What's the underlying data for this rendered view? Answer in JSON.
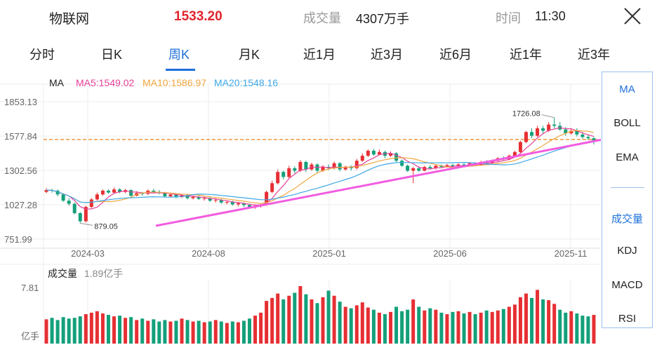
{
  "header": {
    "name": "物联网",
    "price": "1533.20",
    "volume_label": "成交量",
    "volume_value": "4307万手",
    "time_label": "时间",
    "time_value": "11:30"
  },
  "tabs": [
    "分时",
    "日K",
    "周K",
    "月K",
    "近1月",
    "近3月",
    "近6月",
    "近1年",
    "近3年"
  ],
  "active_tab": "周K",
  "ma_legend": {
    "title": "MA",
    "ma5": "MA5:1549.02",
    "ma10": "MA10:1586.97",
    "ma20": "MA20:1548.16"
  },
  "volume_legend": {
    "title": "成交量",
    "value": "1.89亿手"
  },
  "side_panel": {
    "items": [
      "MA",
      "BOLL",
      "EMA",
      "成交量",
      "KDJ",
      "MACD",
      "RSI"
    ],
    "active": [
      "MA",
      "成交量"
    ]
  },
  "colors": {
    "up": "#e62f33",
    "down": "#13a07a",
    "ma5": "#e6419a",
    "ma10": "#f0a640",
    "ma20": "#3fa7e6",
    "trendline": "#f25ce0",
    "dashed": "#f08c2a",
    "accent": "#1e6fd9"
  },
  "chart_data": {
    "type": "candlestick",
    "y_ticks": [
      "1853.13",
      "1577.84",
      "1302.56",
      "1027.28",
      "751.99"
    ],
    "ylim": [
      751.99,
      1853.13
    ],
    "x_ticks": [
      "2024-03",
      "2024-08",
      "2025-01",
      "2025-06",
      "2025-11"
    ],
    "high_label": "1726.08",
    "low_label": "879.05",
    "reference_line": 1550,
    "volume_axis": {
      "top_label": "7.81",
      "unit_label": "亿手",
      "max": 7.81
    },
    "candles": [
      [
        1130,
        1145,
        1160,
        1120
      ],
      [
        1145,
        1140,
        1155,
        1125
      ],
      [
        1140,
        1110,
        1150,
        1095
      ],
      [
        1110,
        1060,
        1120,
        1050
      ],
      [
        1060,
        1035,
        1080,
        1020
      ],
      [
        1035,
        960,
        1045,
        950
      ],
      [
        960,
        895,
        970,
        879
      ],
      [
        895,
        1010,
        1020,
        885
      ],
      [
        1010,
        1070,
        1080,
        1000
      ],
      [
        1070,
        1110,
        1125,
        1060
      ],
      [
        1110,
        1140,
        1150,
        1100
      ],
      [
        1140,
        1125,
        1150,
        1115
      ],
      [
        1125,
        1150,
        1165,
        1115
      ],
      [
        1150,
        1130,
        1160,
        1120
      ],
      [
        1130,
        1145,
        1155,
        1120
      ],
      [
        1145,
        1100,
        1150,
        1090
      ],
      [
        1100,
        1120,
        1135,
        1095
      ],
      [
        1120,
        1115,
        1130,
        1100
      ],
      [
        1115,
        1140,
        1150,
        1105
      ],
      [
        1140,
        1130,
        1155,
        1120
      ],
      [
        1130,
        1120,
        1145,
        1110
      ],
      [
        1120,
        1095,
        1130,
        1085
      ],
      [
        1095,
        1110,
        1120,
        1085
      ],
      [
        1110,
        1090,
        1120,
        1080
      ],
      [
        1090,
        1105,
        1115,
        1080
      ],
      [
        1105,
        1080,
        1115,
        1070
      ],
      [
        1080,
        1090,
        1100,
        1070
      ],
      [
        1090,
        1075,
        1100,
        1065
      ],
      [
        1075,
        1080,
        1090,
        1060
      ],
      [
        1080,
        1060,
        1090,
        1050
      ],
      [
        1060,
        1065,
        1080,
        1045
      ],
      [
        1065,
        1045,
        1075,
        1035
      ],
      [
        1045,
        1050,
        1060,
        1030
      ],
      [
        1050,
        1030,
        1060,
        1020
      ],
      [
        1030,
        1040,
        1050,
        1015
      ],
      [
        1040,
        1025,
        1045,
        1010
      ],
      [
        1025,
        1010,
        1035,
        1000
      ],
      [
        1010,
        1020,
        1030,
        995
      ],
      [
        1020,
        1030,
        1040,
        1005
      ],
      [
        1030,
        1130,
        1140,
        1020
      ],
      [
        1130,
        1200,
        1220,
        1120
      ],
      [
        1200,
        1290,
        1310,
        1190
      ],
      [
        1290,
        1250,
        1300,
        1230
      ],
      [
        1250,
        1320,
        1340,
        1240
      ],
      [
        1320,
        1300,
        1335,
        1280
      ],
      [
        1300,
        1370,
        1385,
        1290
      ],
      [
        1370,
        1310,
        1380,
        1290
      ],
      [
        1310,
        1350,
        1365,
        1300
      ],
      [
        1350,
        1300,
        1360,
        1280
      ],
      [
        1300,
        1330,
        1345,
        1290
      ],
      [
        1330,
        1320,
        1350,
        1305
      ],
      [
        1320,
        1360,
        1375,
        1310
      ],
      [
        1360,
        1310,
        1370,
        1295
      ],
      [
        1310,
        1330,
        1340,
        1300
      ],
      [
        1330,
        1320,
        1345,
        1300
      ],
      [
        1320,
        1380,
        1395,
        1310
      ],
      [
        1380,
        1420,
        1440,
        1370
      ],
      [
        1420,
        1460,
        1470,
        1410
      ],
      [
        1460,
        1430,
        1475,
        1420
      ],
      [
        1430,
        1450,
        1470,
        1425
      ],
      [
        1450,
        1420,
        1460,
        1400
      ],
      [
        1420,
        1440,
        1455,
        1410
      ],
      [
        1440,
        1380,
        1450,
        1370
      ],
      [
        1380,
        1340,
        1390,
        1330
      ],
      [
        1340,
        1300,
        1350,
        1290
      ],
      [
        1300,
        1320,
        1330,
        1200
      ],
      [
        1320,
        1300,
        1335,
        1290
      ],
      [
        1300,
        1330,
        1340,
        1295
      ],
      [
        1330,
        1320,
        1345,
        1310
      ],
      [
        1320,
        1340,
        1350,
        1310
      ],
      [
        1340,
        1330,
        1350,
        1320
      ],
      [
        1330,
        1345,
        1355,
        1325
      ],
      [
        1345,
        1335,
        1355,
        1325
      ],
      [
        1335,
        1350,
        1360,
        1330
      ],
      [
        1350,
        1340,
        1360,
        1330
      ],
      [
        1340,
        1360,
        1370,
        1335
      ],
      [
        1360,
        1345,
        1370,
        1335
      ],
      [
        1345,
        1370,
        1380,
        1340
      ],
      [
        1370,
        1360,
        1385,
        1350
      ],
      [
        1360,
        1380,
        1390,
        1355
      ],
      [
        1380,
        1400,
        1410,
        1370
      ],
      [
        1400,
        1390,
        1415,
        1380
      ],
      [
        1390,
        1420,
        1430,
        1385
      ],
      [
        1420,
        1450,
        1460,
        1410
      ],
      [
        1450,
        1530,
        1540,
        1440
      ],
      [
        1530,
        1610,
        1620,
        1520
      ],
      [
        1610,
        1580,
        1640,
        1560
      ],
      [
        1580,
        1640,
        1660,
        1570
      ],
      [
        1640,
        1620,
        1660,
        1600
      ],
      [
        1620,
        1670,
        1690,
        1610
      ],
      [
        1670,
        1660,
        1726,
        1640
      ],
      [
        1660,
        1630,
        1690,
        1620
      ],
      [
        1630,
        1600,
        1650,
        1580
      ],
      [
        1600,
        1620,
        1640,
        1590
      ],
      [
        1620,
        1590,
        1640,
        1575
      ],
      [
        1590,
        1570,
        1610,
        1555
      ],
      [
        1570,
        1560,
        1590,
        1545
      ],
      [
        1560,
        1533,
        1570,
        1510
      ]
    ],
    "volumes": [
      [
        3.3,
        1
      ],
      [
        3.5,
        -1
      ],
      [
        3.2,
        -1
      ],
      [
        3.6,
        -1
      ],
      [
        3.4,
        -1
      ],
      [
        3.5,
        -1
      ],
      [
        3.7,
        -1
      ],
      [
        4.0,
        1
      ],
      [
        4.2,
        1
      ],
      [
        4.4,
        1
      ],
      [
        4.1,
        1
      ],
      [
        3.9,
        -1
      ],
      [
        3.7,
        1
      ],
      [
        3.8,
        -1
      ],
      [
        3.5,
        1
      ],
      [
        3.6,
        -1
      ],
      [
        3.2,
        1
      ],
      [
        3.4,
        -1
      ],
      [
        3.1,
        1
      ],
      [
        3.3,
        -1
      ],
      [
        3.0,
        -1
      ],
      [
        3.2,
        -1
      ],
      [
        3.0,
        1
      ],
      [
        3.1,
        -1
      ],
      [
        3.4,
        1
      ],
      [
        3.2,
        -1
      ],
      [
        3.0,
        1
      ],
      [
        3.1,
        -1
      ],
      [
        2.9,
        1
      ],
      [
        3.0,
        -1
      ],
      [
        3.2,
        1
      ],
      [
        3.0,
        -1
      ],
      [
        2.8,
        1
      ],
      [
        3.0,
        -1
      ],
      [
        2.9,
        1
      ],
      [
        3.1,
        -1
      ],
      [
        3.4,
        -1
      ],
      [
        3.8,
        1
      ],
      [
        4.2,
        1
      ],
      [
        5.8,
        1
      ],
      [
        6.2,
        1
      ],
      [
        6.8,
        1
      ],
      [
        6.0,
        -1
      ],
      [
        6.5,
        1
      ],
      [
        6.9,
        -1
      ],
      [
        7.81,
        1
      ],
      [
        6.7,
        -1
      ],
      [
        6.0,
        1
      ],
      [
        5.5,
        -1
      ],
      [
        6.3,
        1
      ],
      [
        7.2,
        -1
      ],
      [
        6.5,
        1
      ],
      [
        5.7,
        -1
      ],
      [
        5.0,
        1
      ],
      [
        4.8,
        -1
      ],
      [
        5.2,
        1
      ],
      [
        5.6,
        1
      ],
      [
        4.9,
        1
      ],
      [
        4.6,
        -1
      ],
      [
        4.2,
        1
      ],
      [
        4.0,
        -1
      ],
      [
        4.3,
        1
      ],
      [
        5.0,
        -1
      ],
      [
        4.4,
        -1
      ],
      [
        4.6,
        -1
      ],
      [
        6.0,
        1
      ],
      [
        5.0,
        -1
      ],
      [
        4.5,
        1
      ],
      [
        4.8,
        -1
      ],
      [
        4.6,
        1
      ],
      [
        4.2,
        -1
      ],
      [
        4.0,
        1
      ],
      [
        4.3,
        -1
      ],
      [
        4.4,
        1
      ],
      [
        4.1,
        -1
      ],
      [
        4.3,
        1
      ],
      [
        4.0,
        -1
      ],
      [
        4.2,
        1
      ],
      [
        4.5,
        -1
      ],
      [
        4.3,
        1
      ],
      [
        4.5,
        1
      ],
      [
        4.7,
        -1
      ],
      [
        5.0,
        1
      ],
      [
        5.3,
        1
      ],
      [
        6.3,
        1
      ],
      [
        6.8,
        1
      ],
      [
        6.2,
        -1
      ],
      [
        7.3,
        1
      ],
      [
        6.0,
        -1
      ],
      [
        5.9,
        1
      ],
      [
        5.4,
        1
      ],
      [
        4.6,
        -1
      ],
      [
        4.2,
        -1
      ],
      [
        4.4,
        1
      ],
      [
        4.1,
        -1
      ],
      [
        3.8,
        -1
      ],
      [
        3.7,
        -1
      ],
      [
        3.9,
        1
      ]
    ]
  }
}
